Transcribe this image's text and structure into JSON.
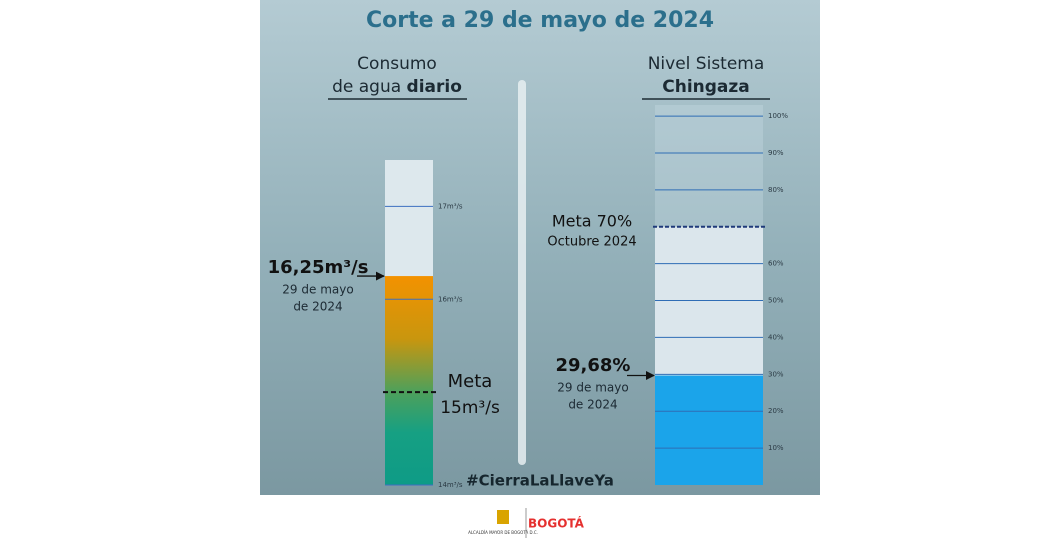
{
  "title": "Corte a 29 de mayo de 2024",
  "hashtag": "#CierraLaLlaveYa",
  "footer": {
    "org": "ALCALDÍA MAYOR DE BOGOTÁ D.C.",
    "brand": "BOGOTÁ"
  },
  "chart_data": [
    {
      "type": "bar",
      "title": [
        "Consumo",
        "de agua"
      ],
      "title_bold": "diario",
      "values": [
        16.25
      ],
      "value_labels": [
        "16,25m³/s"
      ],
      "annotations": [
        "29 de mayo",
        "de 2024"
      ],
      "target": {
        "value": 15,
        "label": "Meta",
        "note": "15m³/s"
      },
      "ylim": [
        14,
        17.5
      ],
      "yticks": [
        {
          "value": 14,
          "label": "14m³/s"
        },
        {
          "value": 16,
          "label": "16m³/s"
        },
        {
          "value": 17,
          "label": "17m³/s"
        }
      ]
    },
    {
      "type": "bar",
      "title": [
        "Nivel Sistema"
      ],
      "title_bold": "Chingaza",
      "values": [
        29.68
      ],
      "value_labels": [
        "29,68%"
      ],
      "annotations": [
        "29 de mayo",
        "de 2024"
      ],
      "target": {
        "value": 70,
        "label": "Meta 70%",
        "note": "Octubre 2024"
      },
      "ylim": [
        0,
        103
      ],
      "yticks": [
        {
          "value": 10,
          "label": "10%"
        },
        {
          "value": 20,
          "label": "20%"
        },
        {
          "value": 30,
          "label": "30%"
        },
        {
          "value": 40,
          "label": "40%"
        },
        {
          "value": 50,
          "label": "50%"
        },
        {
          "value": 60,
          "label": "60%"
        },
        {
          "value": 80,
          "label": "80%"
        },
        {
          "value": 90,
          "label": "90%"
        },
        {
          "value": 100,
          "label": "100%"
        }
      ]
    }
  ]
}
